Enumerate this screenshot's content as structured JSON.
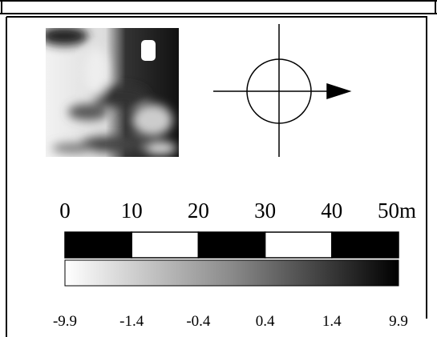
{
  "scale_bar": {
    "labels": [
      "0",
      "10",
      "20",
      "30",
      "40",
      "50m"
    ]
  },
  "colorbar": {
    "labels": [
      "-9.9",
      "-1.4",
      "-0.4",
      "0.4",
      "1.4",
      "9.9"
    ]
  }
}
